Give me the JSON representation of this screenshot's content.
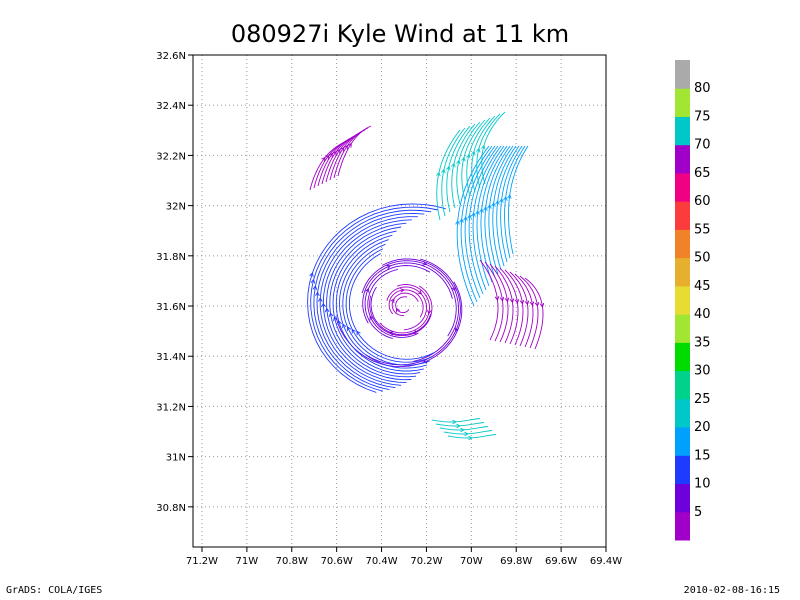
{
  "chart_data": {
    "type": "streamline",
    "title": "080927i Kyle Wind at 11 km",
    "x_ticks": [
      "71.2W",
      "71W",
      "70.8W",
      "70.6W",
      "70.4W",
      "70.2W",
      "70W",
      "69.8W",
      "69.6W",
      "69.4W"
    ],
    "x_tick_values": [
      -71.2,
      -71.0,
      -70.8,
      -70.6,
      -70.4,
      -70.2,
      -70.0,
      -69.8,
      -69.6,
      -69.4
    ],
    "y_ticks": [
      "30.8N",
      "31N",
      "31.2N",
      "31.4N",
      "31.6N",
      "31.8N",
      "32N",
      "32.2N",
      "32.4N",
      "32.6N"
    ],
    "y_tick_values": [
      30.8,
      31.0,
      31.2,
      31.4,
      31.6,
      31.8,
      32.0,
      32.2,
      32.4,
      32.6
    ],
    "xlim": [
      -71.24,
      -69.4
    ],
    "ylim": [
      30.64,
      32.6
    ],
    "grid": true,
    "vortex_center": [
      -70.3,
      31.6
    ],
    "colorbar": {
      "labels": [
        "5",
        "10",
        "15",
        "20",
        "25",
        "30",
        "35",
        "40",
        "45",
        "50",
        "55",
        "60",
        "65",
        "70",
        "75",
        "80"
      ],
      "colors": [
        "#a000c8",
        "#6e00dc",
        "#1e3cff",
        "#00a0ff",
        "#00c8c8",
        "#00d28c",
        "#00dc00",
        "#a0e632",
        "#e6dc32",
        "#e6af2d",
        "#f08228",
        "#fa3c3c",
        "#f00082",
        "#a000c8",
        "#00c8c8",
        "#a0e632",
        "#aaaaaa"
      ]
    },
    "streamline_colors": {
      "inner_core": "#a000c8",
      "inner_ring": "#6e00dc",
      "middle": "#1e3cff",
      "outer_band": "#00a0ff",
      "strong_band": "#00c8c8"
    }
  },
  "footer": {
    "left": "GrADS: COLA/IGES",
    "right": "2010-02-08-16:15"
  }
}
